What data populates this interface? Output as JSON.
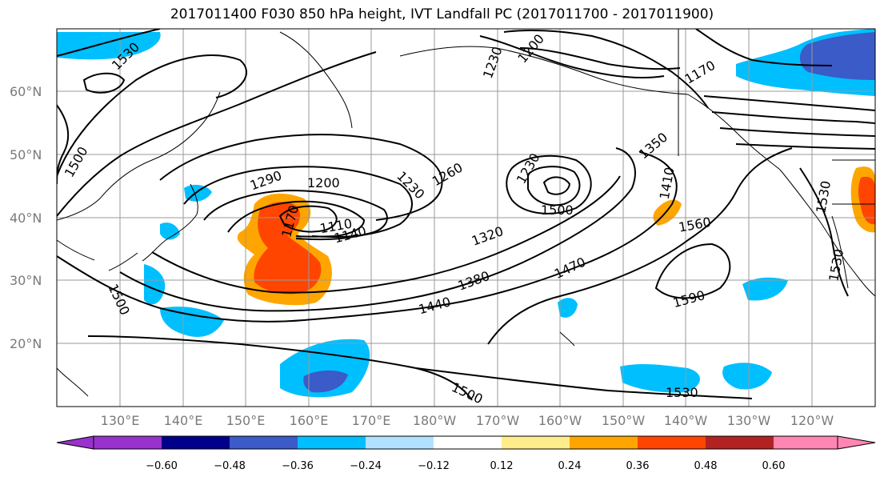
{
  "title": "2017011400 F030 850 hPa height, IVT Landfall PC (2017011700 - 2017011900)",
  "lat_labels": [
    "60°N",
    "50°N",
    "40°N",
    "30°N",
    "20°N"
  ],
  "lon_labels": [
    "130°E",
    "140°E",
    "150°E",
    "160°E",
    "170°E",
    "180°W",
    "170°W",
    "160°W",
    "150°W",
    "140°W",
    "130°W",
    "120°W"
  ],
  "colorbar": {
    "ticks": [
      "−0.60",
      "−0.48",
      "−0.36",
      "−0.24",
      "−0.12",
      "0.12",
      "0.24",
      "0.36",
      "0.48",
      "0.60"
    ],
    "colors": [
      "#9932cc",
      "#00008b",
      "#3a5bc8",
      "#00bfff",
      "#b0e2ff",
      "#ffffff",
      "#ffec8b",
      "#ffa500",
      "#ff4500",
      "#b22222",
      "#ff86b3"
    ]
  },
  "contour_labels": [
    "1530",
    "1500",
    "1290",
    "1200",
    "1230",
    "1260",
    "1230",
    "1350",
    "1410",
    "1170",
    "1110",
    "1140",
    "1320",
    "1380",
    "1440",
    "1470",
    "1560",
    "1590",
    "1500",
    "1530",
    "1500",
    "1530",
    "1200",
    "1170",
    "1230",
    "1530",
    "1500"
  ],
  "pc_fields": {
    "positive": [
      "#ffa500",
      "#ff4500",
      "#ffec8b"
    ],
    "negative": [
      "#00bfff",
      "#3a5bc8",
      "#b0e2ff"
    ]
  }
}
